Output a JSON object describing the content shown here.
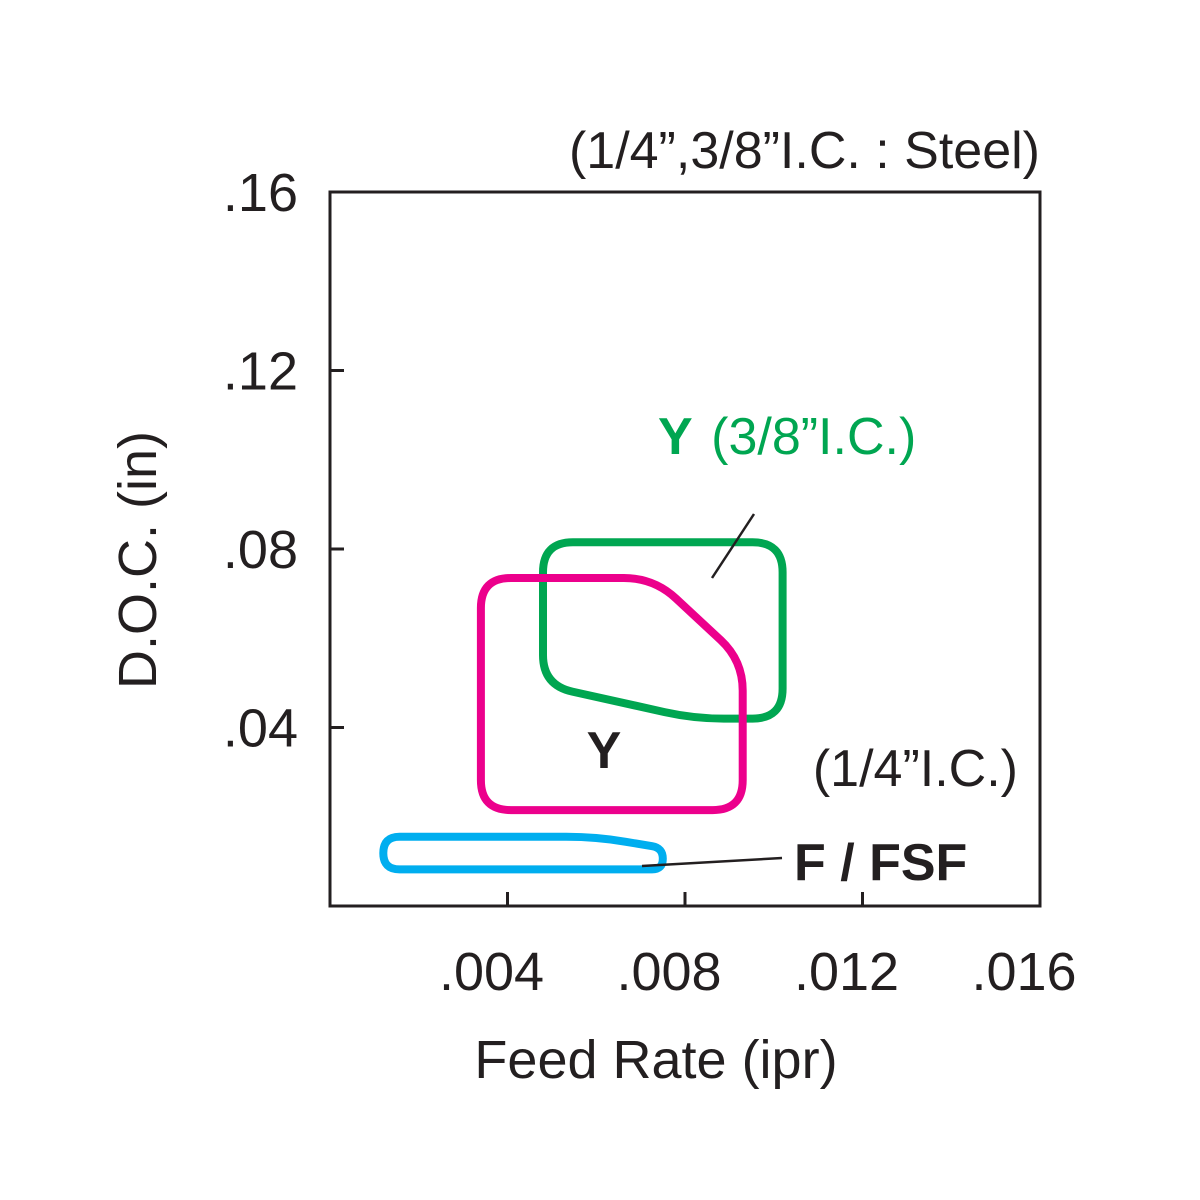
{
  "chart_data": {
    "type": "region",
    "title": "(1/4”,3/8”I.C. : Steel)",
    "xlabel": "Feed Rate (ipr)",
    "ylabel": "D.O.C. (in)",
    "xlim": [
      0,
      0.016
    ],
    "ylim": [
      0,
      0.16
    ],
    "xticks": [
      0.004,
      0.008,
      0.012,
      0.016
    ],
    "xtick_labels": [
      ".004",
      ".008",
      ".012",
      ".016"
    ],
    "yticks": [
      0.04,
      0.08,
      0.12,
      0.16
    ],
    "ytick_labels": [
      ".04",
      ".08",
      ".12",
      ".16"
    ],
    "grid": false,
    "regions": [
      {
        "name": "Y (3/8”I.C.)",
        "label_bold": "Y",
        "label_note": "(3/8”I.C.)",
        "color": "#00a651",
        "outline": [
          [
            0.0048,
            0.0815
          ],
          [
            0.0102,
            0.0815
          ],
          [
            0.0102,
            0.042
          ],
          [
            0.0082,
            0.042
          ],
          [
            0.0048,
            0.0495
          ]
        ]
      },
      {
        "name": "Y (1/4”I.C.)",
        "label_bold": "Y",
        "label_note": "(1/4”I.C.)",
        "color": "#ec008c",
        "outline": [
          [
            0.0034,
            0.0735
          ],
          [
            0.0073,
            0.0735
          ],
          [
            0.0093,
            0.055
          ],
          [
            0.0093,
            0.0215
          ],
          [
            0.0034,
            0.0215
          ]
        ]
      },
      {
        "name": "F / FSF",
        "label_bold": "F / FSF",
        "label_note": "",
        "color": "#00aeef",
        "outline": [
          [
            0.0012,
            0.0155
          ],
          [
            0.006,
            0.0155
          ],
          [
            0.0075,
            0.013
          ],
          [
            0.0075,
            0.0082
          ],
          [
            0.0012,
            0.0082
          ]
        ]
      }
    ]
  }
}
